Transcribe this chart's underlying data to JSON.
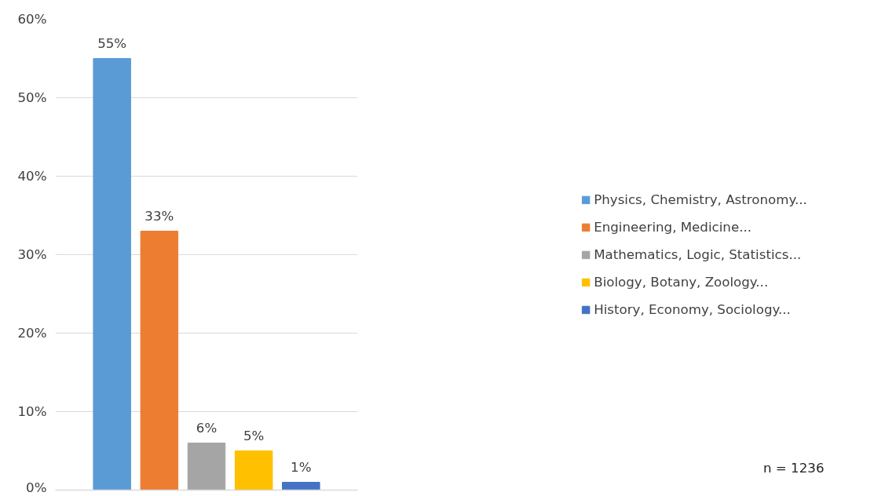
{
  "chart_data": {
    "type": "bar",
    "categories": [
      null,
      null,
      null,
      null,
      null
    ],
    "series": [
      {
        "name": "Physics, Chemistry, Astronomy...",
        "color": "#5b9bd5",
        "values": [
          55,
          null,
          null,
          null,
          null
        ],
        "value_labels": [
          "55%",
          null,
          null,
          null,
          null
        ]
      },
      {
        "name": "Engineering, Medicine...",
        "color": "#ed7d31",
        "values": [
          null,
          33,
          null,
          null,
          null
        ],
        "value_labels": [
          null,
          "33%",
          null,
          null,
          null
        ]
      },
      {
        "name": "Mathematics, Logic, Statistics...",
        "color": "#a5a5a5",
        "values": [
          null,
          null,
          6,
          null,
          null
        ],
        "value_labels": [
          null,
          null,
          "6%",
          null,
          null
        ]
      },
      {
        "name": "Biology, Botany, Zoology...",
        "color": "#ffc000",
        "values": [
          null,
          null,
          null,
          5,
          null
        ],
        "value_labels": [
          null,
          null,
          null,
          "5%",
          null
        ]
      },
      {
        "name": "History, Economy, Sociology...",
        "color": "#4472c4",
        "values": [
          null,
          null,
          null,
          null,
          1
        ],
        "value_labels": [
          null,
          null,
          null,
          null,
          "1%"
        ]
      }
    ],
    "ylim": [
      0,
      60
    ],
    "yticks": [
      {
        "value": 0,
        "label": "0%"
      },
      {
        "value": 10,
        "label": "10%"
      },
      {
        "value": 20,
        "label": "20%"
      },
      {
        "value": 30,
        "label": "30%"
      },
      {
        "value": 40,
        "label": "40%"
      },
      {
        "value": 50,
        "label": "50%"
      },
      {
        "value": 60,
        "label": "60%"
      }
    ],
    "grid": "y",
    "legend": "right",
    "annotations": [
      "n = 1236"
    ]
  }
}
